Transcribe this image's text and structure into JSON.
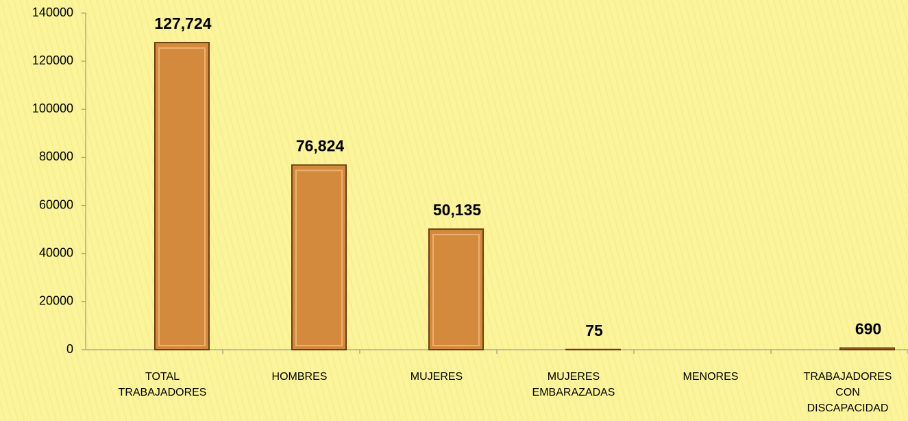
{
  "chart_data": {
    "type": "bar",
    "categories": [
      "TOTAL TRABAJADORES",
      "HOMBRES",
      "MUJERES",
      "MUJERES EMBARAZADAS",
      "MENORES",
      "TRABAJADORES CON DISCAPACIDAD"
    ],
    "values": [
      127724,
      76824,
      50135,
      75,
      null,
      690
    ],
    "value_labels": [
      "127,724",
      "76,824",
      "50,135",
      "75",
      null,
      "690"
    ],
    "color": "#d48a3c",
    "ylim": [
      0,
      140000
    ],
    "yticks": [
      0,
      20000,
      40000,
      60000,
      80000,
      100000,
      120000,
      140000
    ],
    "grid": false
  }
}
